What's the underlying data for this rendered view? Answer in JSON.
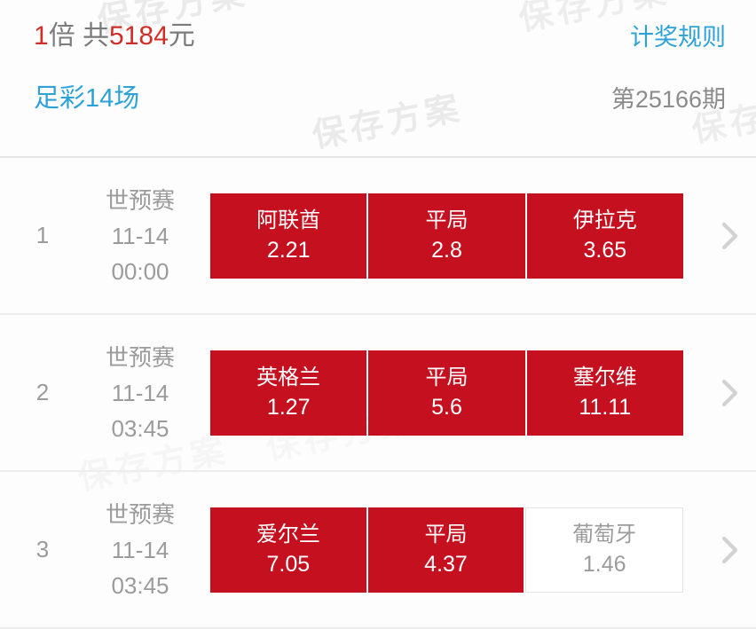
{
  "header": {
    "multiplier_value": "1",
    "multiplier_unit": "倍",
    "total_prefix": " 共",
    "total_value": "5184",
    "total_unit": "元",
    "rules_link": "计奖规则"
  },
  "subheader": {
    "game_name": "足彩14场",
    "issue": "第25166期"
  },
  "watermark": {
    "text": "保存方案"
  },
  "colors": {
    "button_red": "#c5101f",
    "accent_red": "#cd2f28",
    "link_blue": "#2ea2d6",
    "gray_text": "#9b9b9b",
    "divider": "#e5e5e5",
    "chevron": "#d2d2d2",
    "unselected_border": "#e4e4e4",
    "background": "#fdfdfd"
  },
  "matches": [
    {
      "no": "1",
      "league": "世预赛",
      "date": "11-14",
      "time": "00:00",
      "options": [
        {
          "name": "阿联酋",
          "odds": "2.21",
          "selected": true
        },
        {
          "name": "平局",
          "odds": "2.8",
          "selected": true
        },
        {
          "name": "伊拉克",
          "odds": "3.65",
          "selected": true
        }
      ]
    },
    {
      "no": "2",
      "league": "世预赛",
      "date": "11-14",
      "time": "03:45",
      "options": [
        {
          "name": "英格兰",
          "odds": "1.27",
          "selected": true
        },
        {
          "name": "平局",
          "odds": "5.6",
          "selected": true
        },
        {
          "name": "塞尔维",
          "odds": "11.11",
          "selected": true
        }
      ]
    },
    {
      "no": "3",
      "league": "世预赛",
      "date": "11-14",
      "time": "03:45",
      "options": [
        {
          "name": "爱尔兰",
          "odds": "7.05",
          "selected": true
        },
        {
          "name": "平局",
          "odds": "4.37",
          "selected": true
        },
        {
          "name": "葡萄牙",
          "odds": "1.46",
          "selected": false
        }
      ]
    }
  ]
}
